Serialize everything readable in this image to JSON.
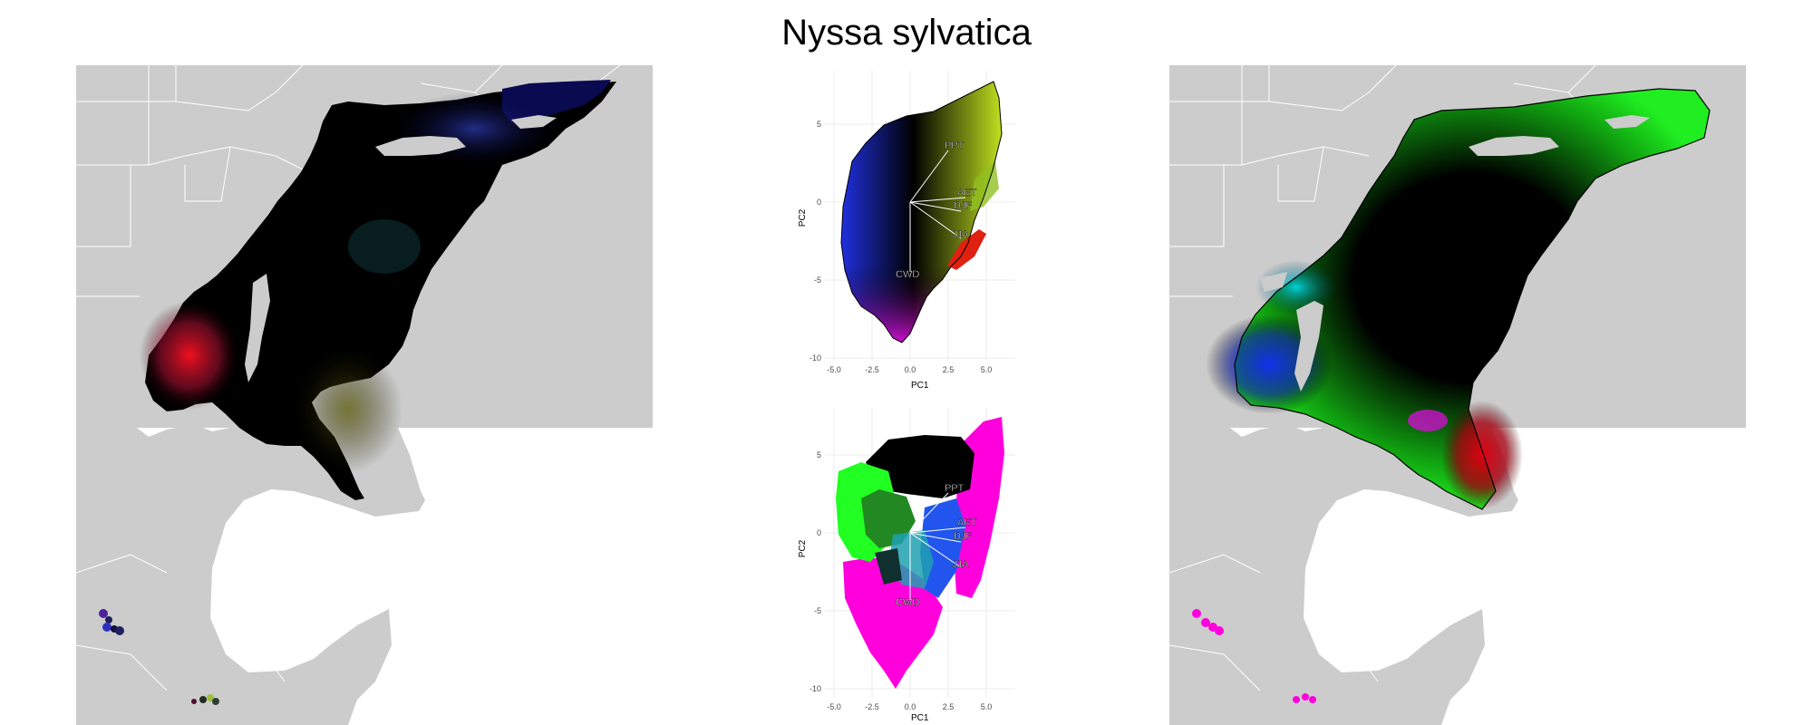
{
  "title": "Nyssa sylvatica",
  "pca_plots": [
    {
      "xlabel": "PC1",
      "ylabel": "PC2",
      "x_ticks": [
        "-5.0",
        "-2.5",
        "0.0",
        "2.5",
        "5.0"
      ],
      "y_ticks": [
        "5",
        "0",
        "-5",
        "-10"
      ],
      "vectors": [
        {
          "label": "PPT",
          "x": 2.0,
          "y": 3.3
        },
        {
          "label": "AET",
          "x": 2.9,
          "y": 0.3
        },
        {
          "label": "DJF",
          "x": 2.6,
          "y": -0.6
        },
        {
          "label": "JJA",
          "x": 2.6,
          "y": -2.3
        },
        {
          "label": "CWD",
          "x": 0.0,
          "y": -4.5
        }
      ]
    },
    {
      "xlabel": "PC1",
      "ylabel": "PC2",
      "x_ticks": [
        "-5.0",
        "-2.5",
        "0.0",
        "2.5",
        "5.0"
      ],
      "y_ticks": [
        "5",
        "0",
        "-5",
        "-10"
      ],
      "vectors": [
        {
          "label": "PPT",
          "x": 2.0,
          "y": 2.3
        },
        {
          "label": "AET",
          "x": 2.9,
          "y": 0.3
        },
        {
          "label": "DJF",
          "x": 2.6,
          "y": -0.6
        },
        {
          "label": "JJA",
          "x": 2.6,
          "y": -2.3
        },
        {
          "label": "CWD",
          "x": 0.0,
          "y": -4.5
        }
      ]
    }
  ],
  "colors": {
    "land": "#cccccc",
    "borders": "#ffffff",
    "range_fill": "#000000",
    "magenta_points": "#ff00dd",
    "green_points": "#22ff22",
    "blue_points": "#2255ee",
    "red_region": "#e00010",
    "cyan_region": "#00ddee"
  }
}
